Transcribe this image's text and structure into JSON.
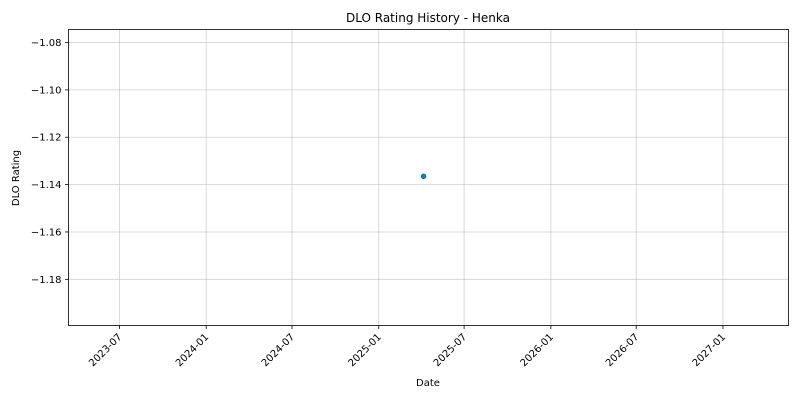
{
  "chart_data": {
    "type": "scatter",
    "title": "DLO Rating History - Henka",
    "xlabel": "Date",
    "ylabel": "DLO Rating",
    "x_ticks": [
      "2023-07",
      "2024-01",
      "2024-07",
      "2025-01",
      "2025-07",
      "2026-01",
      "2026-07",
      "2027-01"
    ],
    "y_ticks": [
      "−1.08",
      "−1.10",
      "−1.12",
      "−1.14",
      "−1.16",
      "−1.18"
    ],
    "xlim": [
      "2023-03-15",
      "2027-05-20"
    ],
    "ylim": [
      -1.1995,
      -1.0745
    ],
    "grid": true,
    "series": [
      {
        "color": "#1f77b4",
        "points": [
          {
            "x": "2025-04-06",
            "y": -1.1365
          }
        ]
      }
    ]
  }
}
